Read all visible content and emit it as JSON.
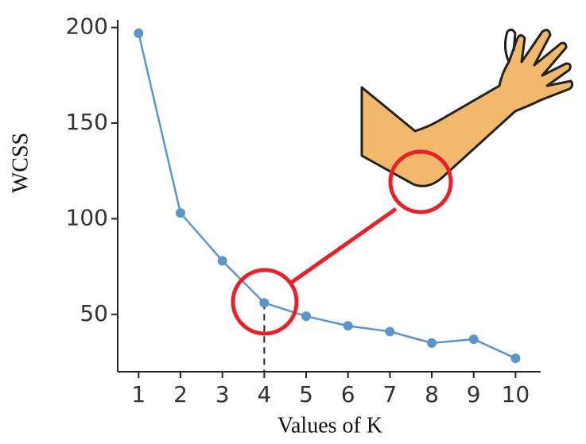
{
  "chart_data": {
    "type": "line",
    "x_label": "Values of K",
    "y_label": "WCSS",
    "x": [
      1,
      2,
      3,
      4,
      5,
      6,
      7,
      8,
      9,
      10
    ],
    "series": [
      {
        "color": "#5b95c9",
        "values": [
          197,
          103,
          78,
          56,
          49,
          44,
          41,
          35,
          37,
          27
        ]
      }
    ],
    "xlim": [
      0.5,
      10.6
    ],
    "ylim": [
      20,
      204
    ],
    "xticks": [
      1,
      2,
      3,
      4,
      5,
      6,
      7,
      8,
      9,
      10
    ],
    "yticks": [
      50,
      100,
      150,
      200
    ],
    "marker_x": 4
  }
}
